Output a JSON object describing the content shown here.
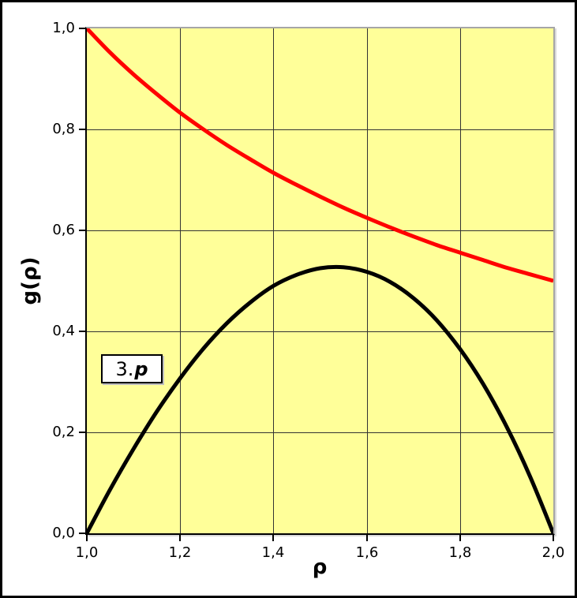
{
  "chart_data": {
    "type": "line",
    "title": "",
    "xlabel": "ρ",
    "ylabel": "g(ρ)",
    "xlim": [
      1.0,
      2.0
    ],
    "ylim": [
      0.0,
      1.0
    ],
    "grid": true,
    "legend": "none",
    "decimal_separator": ",",
    "x_tick_labels": [
      "1,0",
      "1,2",
      "1,4",
      "1,6",
      "1,8",
      "2,0"
    ],
    "x_tick_values": [
      1.0,
      1.2,
      1.4,
      1.6,
      1.8,
      2.0
    ],
    "y_tick_labels": [
      "0,0",
      "0,2",
      "0,4",
      "0,6",
      "0,8",
      "1,0"
    ],
    "y_tick_values": [
      0.0,
      0.2,
      0.4,
      0.6,
      0.8,
      1.0
    ],
    "annotation": {
      "regular": "3.",
      "bold_italic": "p"
    },
    "style": {
      "plot_bg": "#FFFF99",
      "grid_color": "#333333",
      "axis_color": "#000000",
      "outer_border": "#000000",
      "gray_border": "#A6A6A6",
      "curve_width": 5
    },
    "series": [
      {
        "name": "upper-red-curve (1/ρ)",
        "color": "#FF0000",
        "x": [
          1.0,
          1.05,
          1.1,
          1.15,
          1.2,
          1.25,
          1.3,
          1.35,
          1.4,
          1.45,
          1.5,
          1.55,
          1.6,
          1.65,
          1.7,
          1.75,
          1.8,
          1.85,
          1.9,
          1.95,
          2.0
        ],
        "y": [
          1.0,
          0.952,
          0.909,
          0.87,
          0.833,
          0.8,
          0.769,
          0.741,
          0.714,
          0.69,
          0.667,
          0.645,
          0.625,
          0.606,
          0.588,
          0.571,
          0.556,
          0.541,
          0.526,
          0.513,
          0.5
        ]
      },
      {
        "name": "lower-black-curve (peak 0.527 at ρ≈1.54)",
        "color": "#000000",
        "x": [
          1.0,
          1.05,
          1.1,
          1.15,
          1.2,
          1.25,
          1.3,
          1.35,
          1.4,
          1.45,
          1.5,
          1.55,
          1.6,
          1.65,
          1.7,
          1.75,
          1.8,
          1.85,
          1.9,
          1.95,
          2.0
        ],
        "y": [
          0.0,
          0.087,
          0.167,
          0.241,
          0.307,
          0.366,
          0.416,
          0.457,
          0.49,
          0.512,
          0.525,
          0.527,
          0.518,
          0.498,
          0.466,
          0.422,
          0.365,
          0.295,
          0.211,
          0.113,
          0.0
        ]
      }
    ]
  }
}
